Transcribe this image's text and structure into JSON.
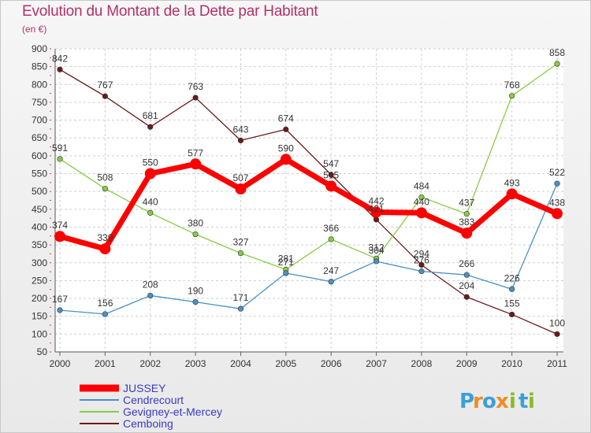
{
  "chart_data": {
    "type": "line",
    "title": "Evolution du Montant de la Dette par Habitant",
    "unit_label": "(en €)",
    "x": [
      "2000",
      "2001",
      "2002",
      "2003",
      "2004",
      "2005",
      "2006",
      "2007",
      "2008",
      "2009",
      "2010",
      "2011"
    ],
    "ylim": [
      50,
      900
    ],
    "yticks": [
      50,
      100,
      150,
      200,
      250,
      300,
      350,
      400,
      450,
      500,
      550,
      600,
      650,
      700,
      750,
      800,
      850,
      900
    ],
    "grid": true,
    "legend_position": "bottom-left",
    "series": [
      {
        "name": "JUSSEY",
        "color": "#ff0000",
        "values": [
          374,
          339,
          550,
          577,
          507,
          590,
          515,
          442,
          440,
          383,
          493,
          438
        ]
      },
      {
        "name": "Cendrecourt",
        "color": "#4a90c8",
        "values": [
          167,
          156,
          208,
          190,
          171,
          271,
          247,
          304,
          276,
          266,
          226,
          522
        ]
      },
      {
        "name": "Gevigney-et-Mercey",
        "color": "#88cc44",
        "values": [
          591,
          508,
          440,
          380,
          327,
          281,
          366,
          312,
          484,
          437,
          768,
          858
        ]
      },
      {
        "name": "Cemboing",
        "color": "#6b1a1a",
        "values": [
          842,
          767,
          681,
          763,
          643,
          674,
          547,
          421,
          294,
          204,
          155,
          100
        ]
      }
    ]
  },
  "logo": {
    "text": "Proxiti",
    "letters": [
      "P",
      "r",
      "o",
      "x",
      "i",
      "t",
      "i"
    ],
    "colors": [
      "#3aa0d8",
      "#f08c20",
      "#3aa0d8",
      "#f08c20",
      "#88bb22",
      "#3aa0d8",
      "#88bb22"
    ]
  }
}
